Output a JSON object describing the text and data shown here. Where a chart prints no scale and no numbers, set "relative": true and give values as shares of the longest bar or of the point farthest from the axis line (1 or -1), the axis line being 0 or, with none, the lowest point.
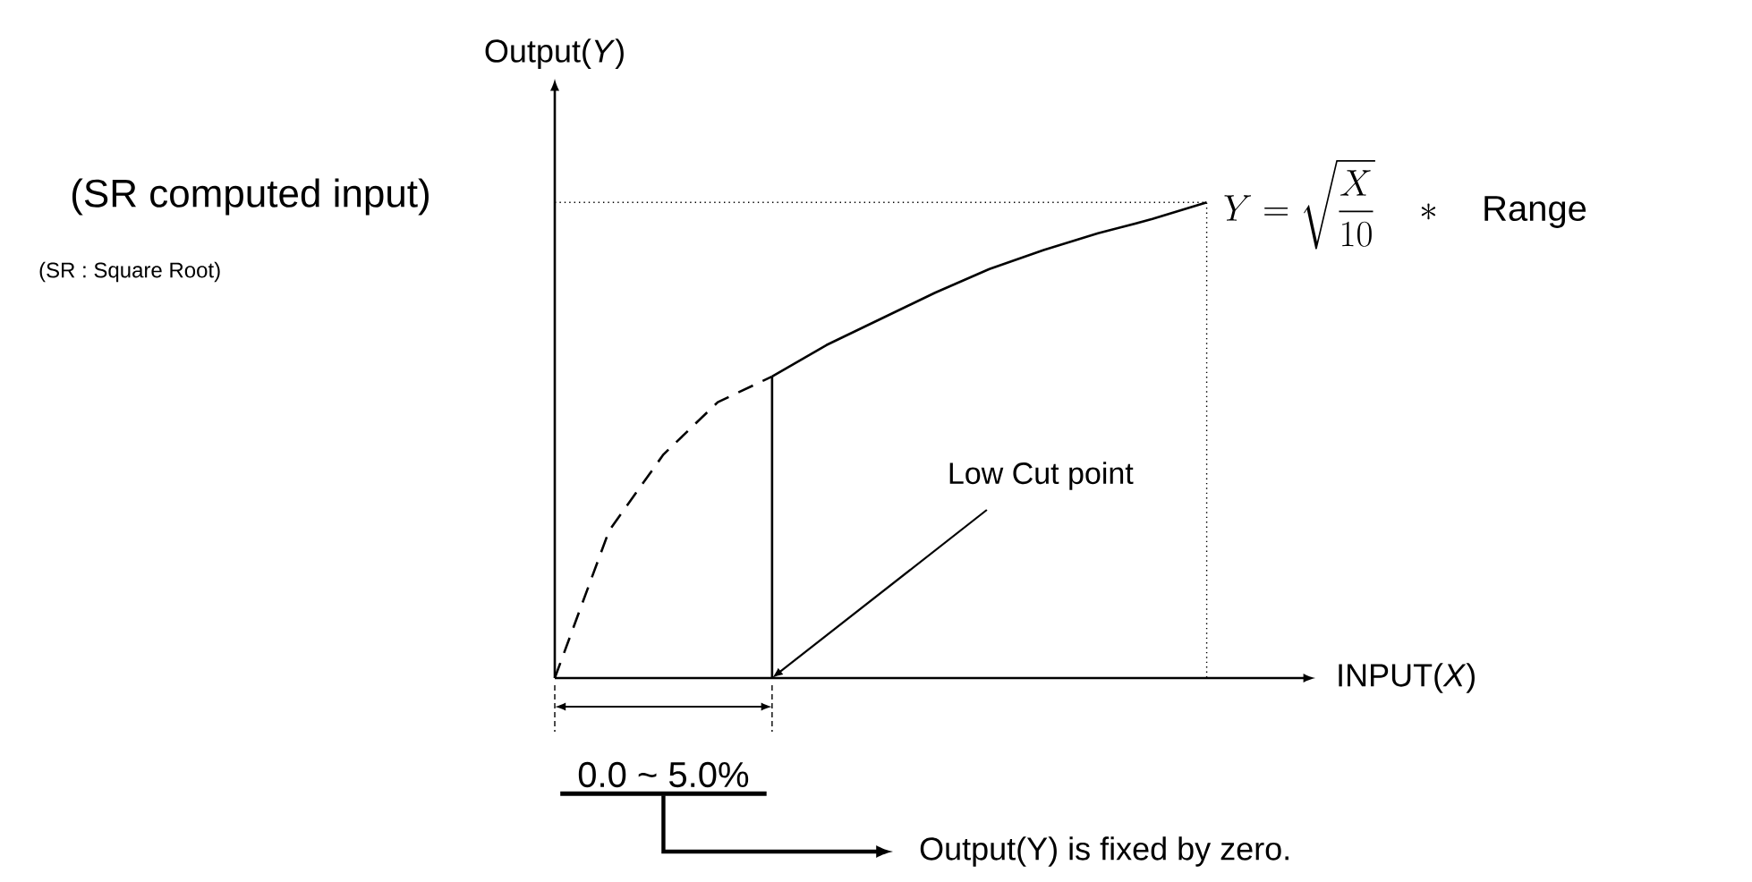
{
  "chart_data": {
    "type": "line",
    "relative": true,
    "xlabel": "INPUT(*X*)",
    "ylabel": "Output(*Y*)",
    "categories": [
      null,
      null,
      null,
      null,
      null,
      null,
      null,
      null,
      null,
      null,
      null,
      null,
      null
    ],
    "series": [
      {
        "line_style": "dashed",
        "color": "#000000",
        "values": [
          0,
          0.31,
          0.47,
          0.58,
          0.634,
          null,
          null,
          null,
          null,
          null,
          null,
          null,
          null
        ]
      },
      {
        "line_style": "solid",
        "color": "#000000",
        "values": [
          null,
          null,
          null,
          null,
          0.634,
          0.7,
          0.755,
          0.81,
          0.86,
          0.9,
          0.935,
          0.965,
          1.0
        ]
      }
    ],
    "annotations": [
      "(SR computed input)",
      "(SR : Square Root)",
      "Y = \\sqrt{\\frac{X}{10}} \\quad * \\quad \\mathrm{Range}",
      "Low Cut point",
      "0.0 ~ 5.0%",
      "Output(Y) is fixed by zero."
    ]
  }
}
